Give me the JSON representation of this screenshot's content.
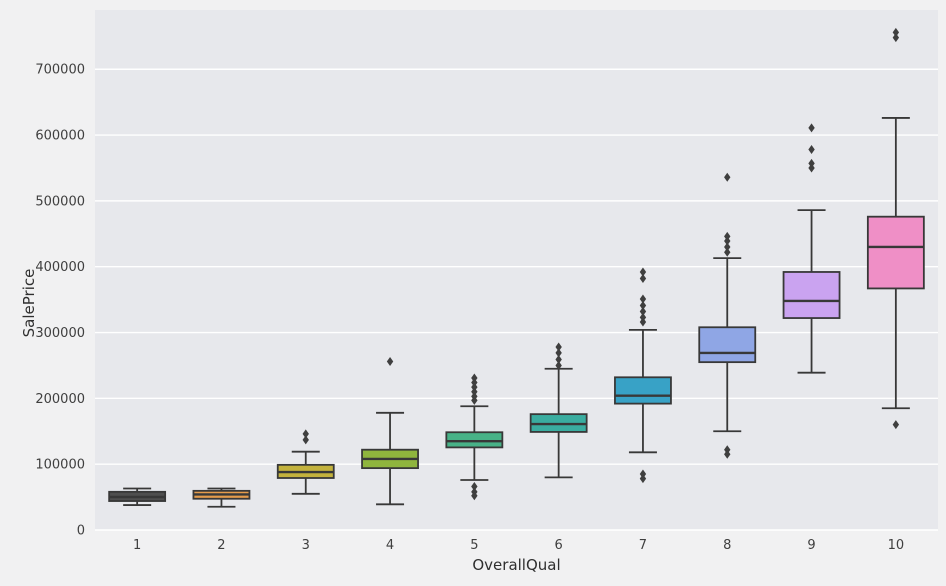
{
  "figure": {
    "background": "#f1f1f2",
    "axes_background": "#e7e8ec",
    "grid_color": "#ffffff",
    "tick_color": "#3f3f3f",
    "label_color": "#2f2f2f"
  },
  "chart_data": {
    "type": "boxplot",
    "title": "",
    "xlabel": "OverallQual",
    "ylabel": "SalePrice",
    "categories": [
      "1",
      "2",
      "3",
      "4",
      "5",
      "6",
      "7",
      "8",
      "9",
      "10"
    ],
    "ylim": [
      0,
      790000
    ],
    "yticks": [
      0,
      100000,
      200000,
      300000,
      400000,
      500000,
      600000,
      700000
    ],
    "grid": "horizontal-white-lines",
    "legend": "none",
    "colors": {
      "box_edge": "#383838",
      "median": "#383838",
      "flier": "#3f3f3f"
    },
    "boxes": [
      {
        "category": "1",
        "color": "#4f4f4f",
        "whisker_low": 37900,
        "q1": 44000,
        "median": 50150,
        "q3": 58000,
        "whisker_high": 63000,
        "outliers": []
      },
      {
        "category": "2",
        "color": "#e59c4c",
        "whisker_low": 35311,
        "q1": 47500,
        "median": 54000,
        "q3": 59500,
        "whisker_high": 63000,
        "outliers": []
      },
      {
        "category": "3",
        "color": "#c3b23d",
        "whisker_low": 55000,
        "q1": 79000,
        "median": 88000,
        "q3": 99000,
        "whisker_high": 119000,
        "outliers": [
          137000,
          146000
        ]
      },
      {
        "category": "4",
        "color": "#8fb53d",
        "whisker_low": 39000,
        "q1": 94000,
        "median": 108000,
        "q3": 122000,
        "whisker_high": 178000,
        "outliers": [
          256000
        ]
      },
      {
        "category": "5",
        "color": "#48b287",
        "whisker_low": 76000,
        "q1": 125500,
        "median": 135000,
        "q3": 148500,
        "whisker_high": 188000,
        "outliers": [
          197000,
          203000,
          210000,
          217000,
          224000,
          231000,
          66000,
          58000,
          52000
        ]
      },
      {
        "category": "6",
        "color": "#3aada0",
        "whisker_low": 80000,
        "q1": 149000,
        "median": 161000,
        "q3": 176000,
        "whisker_high": 245000,
        "outliers": [
          250000,
          259000,
          269000,
          278000
        ]
      },
      {
        "category": "7",
        "color": "#38a2c6",
        "whisker_low": 118000,
        "q1": 192000,
        "median": 204000,
        "q3": 232000,
        "whisker_high": 304000,
        "outliers": [
          316000,
          323000,
          332000,
          341000,
          351000,
          382000,
          392000,
          85000,
          78000
        ]
      },
      {
        "category": "8",
        "color": "#8fa6e5",
        "whisker_low": 150000,
        "q1": 255000,
        "median": 269000,
        "q3": 308000,
        "whisker_high": 413000,
        "outliers": [
          422000,
          430000,
          439000,
          446000,
          536000,
          122000,
          115000
        ]
      },
      {
        "category": "9",
        "color": "#caa3f0",
        "whisker_low": 239000,
        "q1": 322000,
        "median": 348000,
        "q3": 392000,
        "whisker_high": 486000,
        "outliers": [
          550000,
          557000,
          578000,
          611000
        ]
      },
      {
        "category": "10",
        "color": "#ef8fc6",
        "whisker_low": 185000,
        "q1": 367000,
        "median": 430000,
        "q3": 476000,
        "whisker_high": 626000,
        "outliers": [
          748000,
          756000,
          160000
        ]
      }
    ]
  }
}
